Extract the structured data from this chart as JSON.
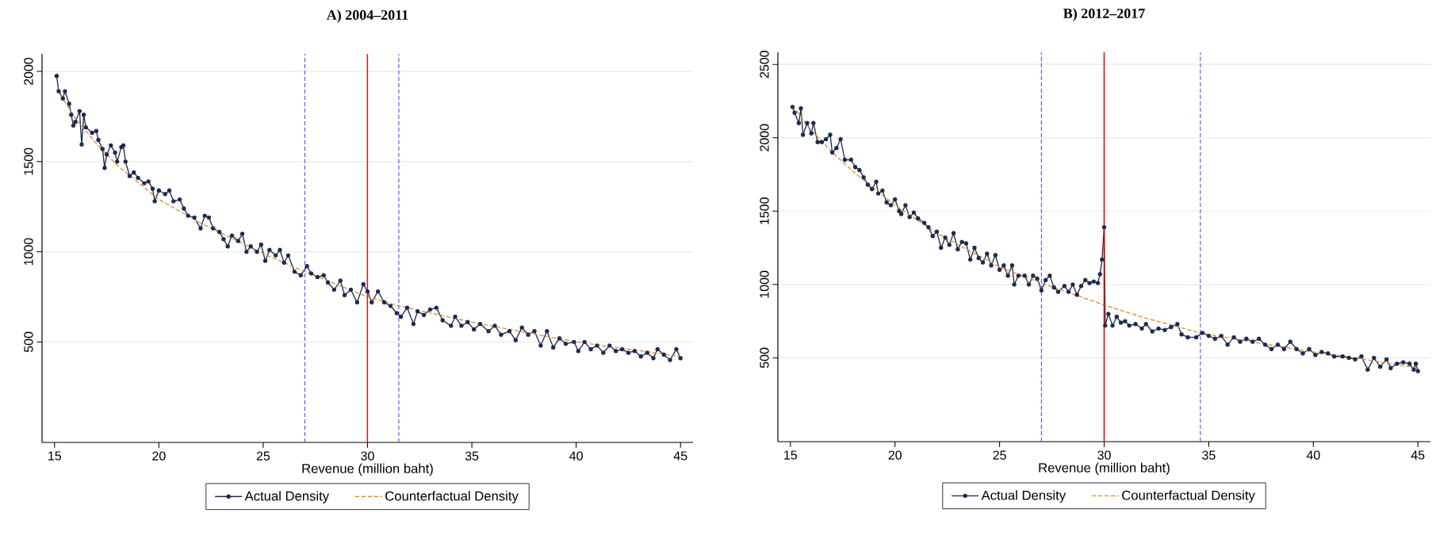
{
  "chart_data": [
    {
      "type": "line",
      "title": "A)  2004–2011",
      "xlabel": "Revenue (million baht)",
      "xlim": [
        14.4,
        45.6
      ],
      "ylim": [
        -57,
        2097
      ],
      "xticks": [
        15,
        20,
        25,
        30,
        35,
        40,
        45
      ],
      "yticks": [
        500,
        1000,
        1500,
        2000
      ],
      "grid": "y",
      "legend": "bottom",
      "series": [
        {
          "name": "Actual Density",
          "color": "#1f2a4f",
          "marker": "circle",
          "line_style": "solid",
          "x": [
            15.1,
            15.2,
            15.4,
            15.5,
            15.7,
            15.8,
            15.9,
            16.0,
            16.2,
            16.3,
            16.4,
            16.5,
            16.8,
            17.0,
            17.1,
            17.3,
            17.4,
            17.5,
            17.7,
            17.9,
            18.0,
            18.2,
            18.3,
            18.4,
            18.6,
            18.8,
            19.0,
            19.3,
            19.5,
            19.7,
            19.8,
            20.0,
            20.3,
            20.5,
            20.7,
            21.0,
            21.2,
            21.4,
            21.7,
            22.0,
            22.2,
            22.4,
            22.6,
            22.9,
            23.1,
            23.3,
            23.5,
            23.8,
            24.0,
            24.2,
            24.4,
            24.7,
            24.9,
            25.1,
            25.3,
            25.6,
            25.8,
            26.0,
            26.2,
            26.5,
            26.8,
            27.1,
            27.3,
            27.6,
            27.9,
            28.1,
            28.4,
            28.7,
            28.9,
            29.2,
            29.5,
            29.8,
            30.0,
            30.2,
            30.5,
            30.8,
            31.1,
            31.4,
            31.6,
            31.9,
            32.2,
            32.4,
            32.7,
            33.0,
            33.3,
            33.6,
            34.0,
            34.2,
            34.5,
            34.8,
            35.1,
            35.4,
            35.8,
            36.1,
            36.4,
            36.8,
            37.1,
            37.4,
            37.7,
            38.0,
            38.3,
            38.6,
            38.9,
            39.2,
            39.5,
            39.9,
            40.1,
            40.4,
            40.7,
            41.0,
            41.3,
            41.6,
            41.9,
            42.2,
            42.5,
            42.8,
            43.1,
            43.4,
            43.7,
            43.9,
            44.2,
            44.5,
            44.8,
            45.0
          ],
          "values": [
            1975,
            1890,
            1850,
            1890,
            1820,
            1760,
            1700,
            1720,
            1780,
            1595,
            1760,
            1690,
            1660,
            1670,
            1620,
            1570,
            1465,
            1540,
            1590,
            1550,
            1500,
            1580,
            1590,
            1500,
            1420,
            1440,
            1410,
            1380,
            1390,
            1350,
            1280,
            1340,
            1320,
            1340,
            1280,
            1290,
            1240,
            1200,
            1190,
            1130,
            1200,
            1190,
            1130,
            1110,
            1070,
            1030,
            1090,
            1060,
            1100,
            1000,
            1030,
            1000,
            1040,
            950,
            1010,
            980,
            1010,
            940,
            980,
            890,
            870,
            920,
            880,
            860,
            870,
            830,
            790,
            840,
            760,
            790,
            720,
            820,
            780,
            720,
            780,
            720,
            700,
            660,
            640,
            690,
            600,
            670,
            650,
            680,
            690,
            620,
            590,
            640,
            590,
            610,
            570,
            600,
            560,
            590,
            540,
            560,
            510,
            580,
            540,
            560,
            480,
            560,
            470,
            520,
            490,
            500,
            450,
            500,
            460,
            480,
            440,
            480,
            450,
            460,
            440,
            450,
            420,
            440,
            410,
            460,
            430,
            400,
            460,
            410
          ]
        },
        {
          "name": "Counterfactual Density",
          "color": "#e8892f",
          "marker": "none",
          "line_style": "dashed",
          "x": [
            15.1,
            16,
            17,
            18,
            20,
            22,
            25,
            27,
            30,
            31.5,
            35,
            40,
            45
          ],
          "values": [
            1900,
            1740,
            1600,
            1480,
            1290,
            1160,
            990,
            890,
            750,
            700,
            610,
            500,
            420
          ]
        }
      ],
      "ref_lines": [
        {
          "axis": "x",
          "value": 27,
          "color": "#4a4aff",
          "line_style": "dashed"
        },
        {
          "axis": "x",
          "value": 30,
          "color": "#ff0000",
          "line_style": "solid"
        },
        {
          "axis": "x",
          "value": 31.5,
          "color": "#4a4aff",
          "line_style": "dashed"
        }
      ]
    },
    {
      "type": "line",
      "title": "B)  2012–2017",
      "xlabel": "Revenue (million baht)",
      "xlim": [
        14.4,
        45.6
      ],
      "ylim": [
        -71,
        2582
      ],
      "xticks": [
        15,
        20,
        25,
        30,
        35,
        40,
        45
      ],
      "yticks": [
        500,
        1000,
        1500,
        2000,
        2500
      ],
      "grid": "y",
      "legend": "bottom",
      "series": [
        {
          "name": "Actual Density",
          "color": "#1f2a4f",
          "marker": "circle",
          "line_style": "solid",
          "x": [
            15.1,
            15.2,
            15.4,
            15.5,
            15.6,
            15.8,
            16.0,
            16.1,
            16.3,
            16.5,
            16.7,
            16.9,
            17.0,
            17.2,
            17.4,
            17.6,
            17.9,
            18.1,
            18.3,
            18.5,
            18.7,
            18.9,
            19.1,
            19.2,
            19.4,
            19.6,
            19.8,
            20.0,
            20.2,
            20.3,
            20.5,
            20.7,
            20.9,
            21.1,
            21.4,
            21.6,
            21.8,
            22.0,
            22.2,
            22.4,
            22.6,
            22.8,
            23.0,
            23.2,
            23.4,
            23.6,
            23.8,
            24.0,
            24.2,
            24.4,
            24.6,
            24.8,
            25.0,
            25.2,
            25.4,
            25.6,
            25.7,
            25.9,
            26.2,
            26.4,
            26.6,
            26.8,
            27.0,
            27.2,
            27.4,
            27.6,
            27.8,
            28.1,
            28.3,
            28.5,
            28.7,
            28.9,
            29.1,
            29.3,
            29.5,
            29.7,
            29.8,
            29.9,
            30.0,
            30.05,
            30.2,
            30.4,
            30.6,
            30.8,
            31.0,
            31.2,
            31.5,
            31.8,
            32.0,
            32.3,
            32.6,
            32.9,
            33.2,
            33.5,
            33.7,
            34.0,
            34.4,
            34.7,
            35.0,
            35.3,
            35.6,
            35.9,
            36.2,
            36.5,
            36.8,
            37.1,
            37.4,
            37.7,
            38.0,
            38.3,
            38.6,
            38.9,
            39.2,
            39.5,
            39.8,
            40.1,
            40.4,
            40.7,
            41.0,
            41.4,
            41.7,
            42.0,
            42.3,
            42.6,
            42.9,
            43.2,
            43.5,
            43.7,
            44.0,
            44.3,
            44.6,
            44.8,
            44.9,
            45.0
          ],
          "values": [
            2210,
            2170,
            2100,
            2200,
            2020,
            2100,
            2030,
            2100,
            1970,
            1970,
            1990,
            2020,
            1900,
            1930,
            1990,
            1850,
            1850,
            1800,
            1780,
            1730,
            1680,
            1650,
            1700,
            1620,
            1640,
            1560,
            1540,
            1580,
            1500,
            1480,
            1540,
            1460,
            1490,
            1450,
            1420,
            1390,
            1330,
            1360,
            1250,
            1320,
            1270,
            1350,
            1240,
            1290,
            1280,
            1170,
            1250,
            1180,
            1150,
            1210,
            1130,
            1200,
            1100,
            1130,
            1060,
            1130,
            1000,
            1060,
            1060,
            1000,
            1060,
            1040,
            960,
            1030,
            1060,
            980,
            950,
            990,
            950,
            1000,
            930,
            990,
            1030,
            1010,
            1020,
            1010,
            1070,
            1170,
            1390,
            720,
            800,
            720,
            780,
            740,
            750,
            720,
            730,
            700,
            730,
            680,
            700,
            690,
            710,
            730,
            660,
            640,
            640,
            670,
            650,
            630,
            650,
            590,
            640,
            610,
            630,
            610,
            630,
            590,
            560,
            590,
            560,
            610,
            560,
            530,
            560,
            520,
            540,
            530,
            510,
            510,
            500,
            490,
            510,
            420,
            500,
            440,
            490,
            430,
            460,
            470,
            460,
            420,
            460,
            410
          ]
        },
        {
          "name": "Counterfactual Density",
          "color": "#e8892f",
          "marker": "none",
          "line_style": "dashed",
          "x": [
            15.1,
            16,
            17,
            18,
            20,
            22,
            25,
            27,
            30,
            32,
            34.6,
            37,
            40,
            42,
            45
          ],
          "values": [
            2220,
            2050,
            1900,
            1770,
            1540,
            1350,
            1120,
            1010,
            860,
            770,
            670,
            610,
            540,
            500,
            430
          ]
        }
      ],
      "ref_lines": [
        {
          "axis": "x",
          "value": 27,
          "color": "#4a4aff",
          "line_style": "dashed"
        },
        {
          "axis": "x",
          "value": 30,
          "color": "#ff0000",
          "line_style": "solid"
        },
        {
          "axis": "x",
          "value": 34.6,
          "color": "#4a4aff",
          "line_style": "dashed"
        }
      ]
    }
  ]
}
